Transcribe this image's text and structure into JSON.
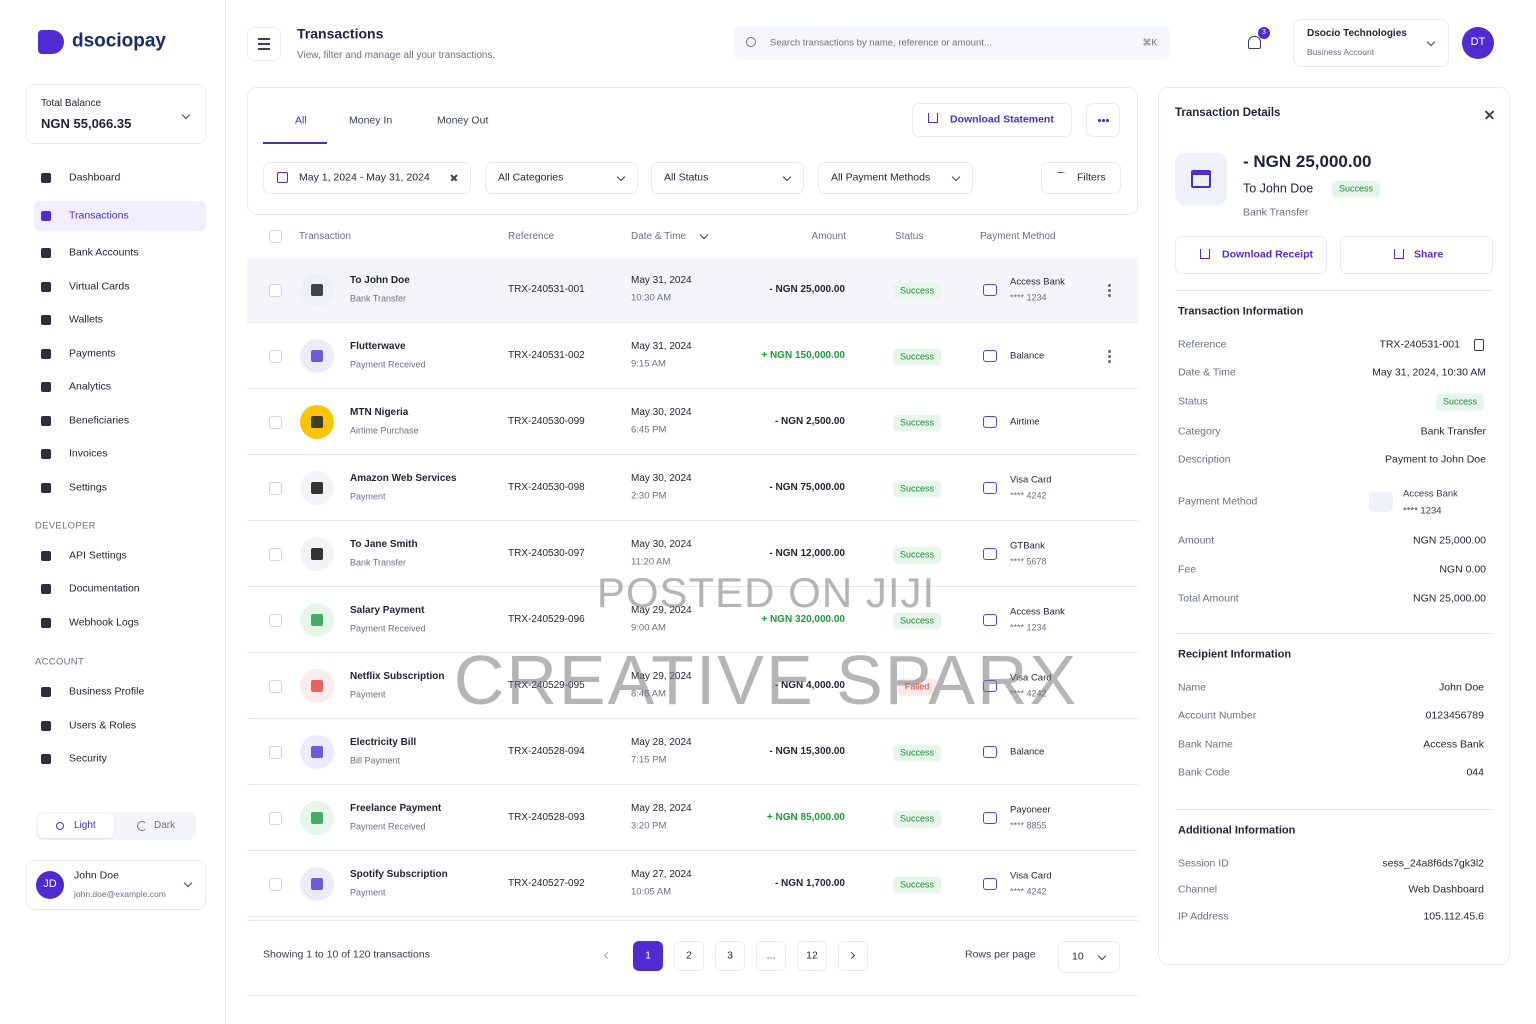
{
  "brand": "dsociopay",
  "balance": {
    "label": "Total Balance",
    "amount": "NGN 55,066.35"
  },
  "nav": [
    "Dashboard",
    "Transactions",
    "Bank Accounts",
    "Virtual Cards",
    "Wallets",
    "Payments",
    "Analytics",
    "Beneficiaries",
    "Invoices",
    "Settings"
  ],
  "developer": {
    "heading": "DEVELOPER",
    "items": [
      "API Settings",
      "Documentation",
      "Webhook Logs"
    ]
  },
  "account": {
    "heading": "ACCOUNT",
    "items": [
      "Business Profile",
      "Users & Roles",
      "Security"
    ]
  },
  "theme": [
    "Light",
    "Dark"
  ],
  "user": {
    "initials": "JD",
    "name": "John Doe",
    "email": "john.doe@example.com"
  },
  "header": {
    "title": "Transactions",
    "subtitle": "View, filter and manage all your transactions.",
    "search": "Search transactions by name, reference or amount...",
    "shortcut": "⌘K",
    "notifications": "3",
    "company": "Dsocio Technologies",
    "account_type": "Business Account",
    "initials": "DT"
  },
  "tabs": [
    "All",
    "Money In",
    "Money Out"
  ],
  "download": "Download Statement",
  "filters": {
    "date": "May 1, 2024 - May 31, 2024",
    "category": "All Categories",
    "status": "All Status",
    "method": "All Payment Methods",
    "button": "Filters"
  },
  "table": {
    "columns": [
      "Transaction",
      "Reference",
      "Date & Time",
      "Amount",
      "Status",
      "Payment Method"
    ],
    "rows": [
      {
        "name": "To John Doe",
        "sub": "Bank Transfer",
        "ref": "TRX-240531-001",
        "date": "May 31, 2024",
        "time": "10:30 AM",
        "amount": "- NGN 25,000.00",
        "status": "Success",
        "method": "Access Bank",
        "method_sub": "**** 1234",
        "icon_bg": "#eef0f7",
        "icon_fg": "#1f2430"
      },
      {
        "name": "Flutterwave",
        "sub": "Payment Received",
        "ref": "TRX-240531-002",
        "date": "May 31, 2024",
        "time": "9:15 AM",
        "amount": "+ NGN 150,000.00",
        "status": "Success",
        "method": "Balance",
        "icon_bg": "#eeeafd",
        "icon_fg": "#5b3fd6"
      },
      {
        "name": "MTN Nigeria",
        "sub": "Airtime Purchase",
        "ref": "TRX-240530-099",
        "date": "May 30, 2024",
        "time": "6:45 PM",
        "amount": "- NGN 2,500.00",
        "status": "Success",
        "method": "Airtime",
        "icon_bg": "#fbc400",
        "icon_fg": "#1f2430"
      },
      {
        "name": "Amazon Web Services",
        "sub": "Payment",
        "ref": "TRX-240530-098",
        "date": "May 30, 2024",
        "time": "2:30 PM",
        "amount": "- NGN 75,000.00",
        "status": "Success",
        "method": "Visa Card",
        "method_sub": "**** 4242",
        "icon_bg": "#f3f3f5",
        "icon_fg": "#111111"
      },
      {
        "name": "To Jane Smith",
        "sub": "Bank Transfer",
        "ref": "TRX-240530-097",
        "date": "May 30, 2024",
        "time": "11:20 AM",
        "amount": "- NGN 12,000.00",
        "status": "Success",
        "method": "GTBank",
        "method_sub": "**** 5678",
        "icon_bg": "#f3f3f5",
        "icon_fg": "#111111"
      },
      {
        "name": "Salary Payment",
        "sub": "Payment Received",
        "ref": "TRX-240529-096",
        "date": "May 29, 2024",
        "time": "9:00 AM",
        "amount": "+ NGN 320,000.00",
        "status": "Success",
        "method": "Access Bank",
        "method_sub": "**** 1234",
        "icon_bg": "#e6f6ea",
        "icon_fg": "#2a9d4a"
      },
      {
        "name": "Netflix Subscription",
        "sub": "Payment",
        "ref": "TRX-240529-095",
        "date": "May 29, 2024",
        "time": "8:45 AM",
        "amount": "- NGN 4,000.00",
        "status": "Failed",
        "method": "Visa Card",
        "method_sub": "**** 4242",
        "icon_bg": "#fdeaea",
        "icon_fg": "#e24b4b"
      },
      {
        "name": "Electricity Bill",
        "sub": "Bill Payment",
        "ref": "TRX-240528-094",
        "date": "May 28, 2024",
        "time": "7:15 PM",
        "amount": "- NGN 15,300.00",
        "status": "Success",
        "method": "Balance",
        "icon_bg": "#eeeafd",
        "icon_fg": "#5b3fd6"
      },
      {
        "name": "Freelance Payment",
        "sub": "Payment Received",
        "ref": "TRX-240528-093",
        "date": "May 28, 2024",
        "time": "3:20 PM",
        "amount": "+ NGN 85,000.00",
        "status": "Success",
        "method": "Payoneer",
        "method_sub": "**** 8855",
        "icon_bg": "#e6f6ea",
        "icon_fg": "#2a9d4a"
      },
      {
        "name": "Spotify Subscription",
        "sub": "Payment",
        "ref": "TRX-240527-092",
        "date": "May 27, 2024",
        "time": "10:05 AM",
        "amount": "- NGN 1,700.00",
        "status": "Success",
        "method": "Visa Card",
        "method_sub": "**** 4242",
        "icon_bg": "#eeeafd",
        "icon_fg": "#5b3fd6"
      }
    ]
  },
  "pagination": {
    "summary": "Showing 1 to 10 of 120 transactions",
    "pages": [
      "1",
      "2",
      "3",
      "...",
      "12"
    ],
    "rows_label": "Rows per page",
    "rows_value": "10"
  },
  "details": {
    "title": "Transaction Details",
    "amount": "- NGN 25,000.00",
    "recipient": "To John Doe",
    "status": "Success",
    "method": "Bank Transfer",
    "buttons": [
      "Download Receipt",
      "Share"
    ],
    "sections": [
      {
        "heading": "Transaction Information",
        "rows": [
          {
            "label": "Reference",
            "value": "TRX-240531-001"
          },
          {
            "label": "Date & Time",
            "value": "May 31, 2024, 10:30 AM"
          },
          {
            "label": "Status",
            "value": "Success"
          },
          {
            "label": "Category",
            "value": "Bank Transfer"
          },
          {
            "label": "Description",
            "value": "Payment to John Doe"
          },
          {
            "label": "Payment Method",
            "value": "Access Bank",
            "sub": "**** 1234"
          },
          {
            "label": "Amount",
            "value": "NGN 25,000.00"
          },
          {
            "label": "Fee",
            "value": "NGN 0.00"
          },
          {
            "label": "Total Amount",
            "value": "NGN 25,000.00"
          }
        ]
      },
      {
        "heading": "Recipient Information",
        "rows": [
          {
            "label": "Name",
            "value": "John Doe"
          },
          {
            "label": "Account Number",
            "value": "0123456789"
          },
          {
            "label": "Bank Name",
            "value": "Access Bank"
          },
          {
            "label": "Bank Code",
            "value": "044"
          }
        ]
      },
      {
        "heading": "Additional Information",
        "rows": [
          {
            "label": "Session ID",
            "value": "sess_24a8f6ds7gk3l2"
          },
          {
            "label": "Channel",
            "value": "Web Dashboard"
          },
          {
            "label": "IP Address",
            "value": "105.112.45.6"
          }
        ]
      }
    ]
  },
  "watermarks": [
    "POSTED ON JIJI",
    "CREATIVE SPARX"
  ]
}
